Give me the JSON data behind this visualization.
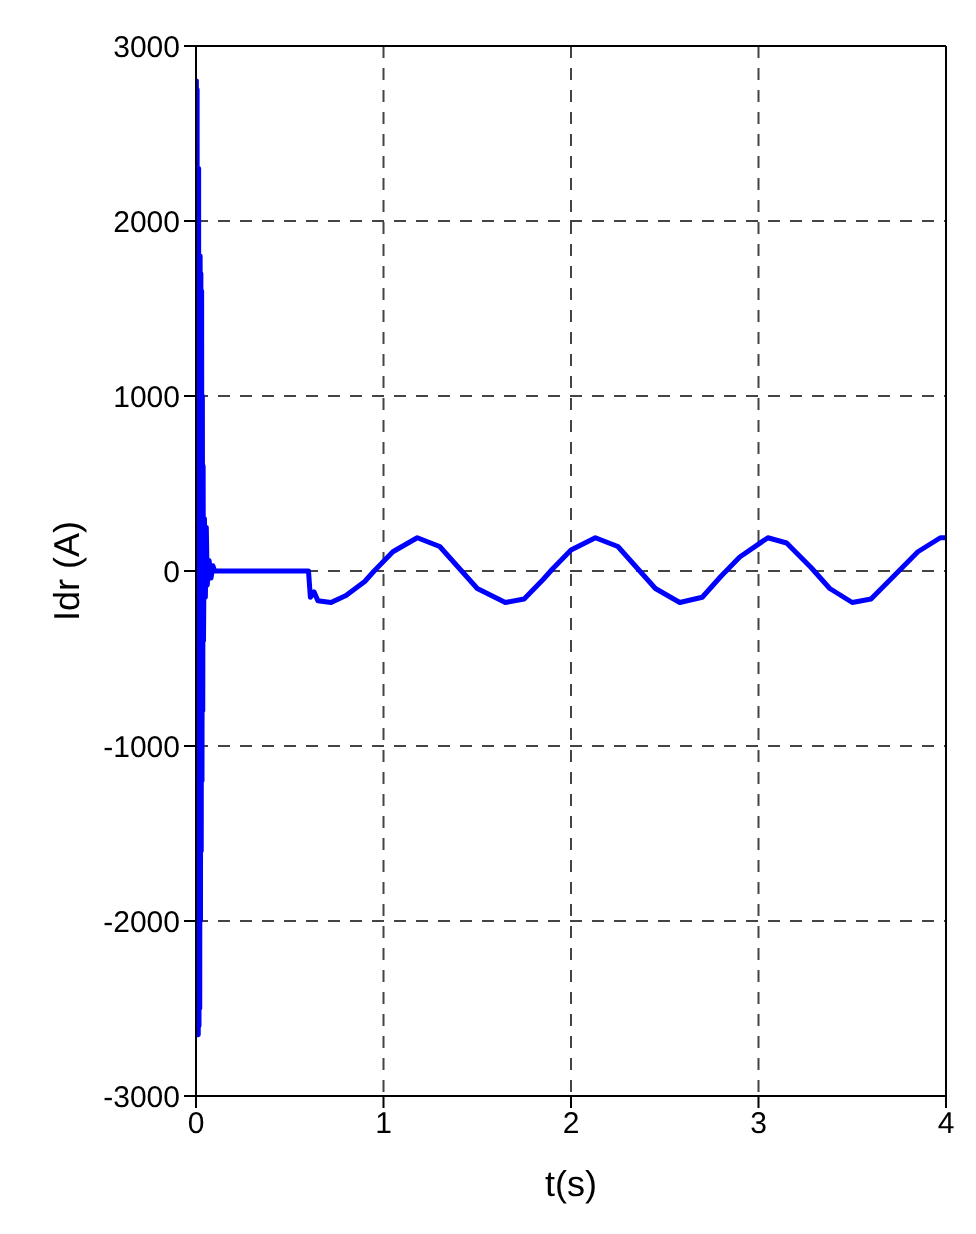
{
  "chart_data": {
    "type": "line",
    "xlabel": "t(s)",
    "ylabel": "Idr (A)",
    "xlim": [
      0,
      4
    ],
    "ylim": [
      -3000,
      3000
    ],
    "xticks": [
      0,
      1,
      2,
      3,
      4
    ],
    "yticks": [
      -3000,
      -2000,
      -1000,
      0,
      1000,
      2000,
      3000
    ],
    "grid": true,
    "marker": "none",
    "line_style": "solid",
    "series": [
      {
        "color": "#0000ff",
        "x": [
          0,
          0.002,
          0.004,
          0.006,
          0.008,
          0.01,
          0.012,
          0.014,
          0.016,
          0.018,
          0.02,
          0.022,
          0.024,
          0.026,
          0.028,
          0.03,
          0.032,
          0.034,
          0.036,
          0.038,
          0.04,
          0.045,
          0.05,
          0.055,
          0.06,
          0.07,
          0.08,
          0.09,
          0.1,
          0.6,
          0.61,
          0.63,
          0.65,
          0.72,
          0.8,
          0.9,
          0.95,
          1.05,
          1.18,
          1.3,
          1.4,
          1.5,
          1.65,
          1.75,
          1.85,
          1.9,
          2.0,
          2.13,
          2.25,
          2.35,
          2.45,
          2.58,
          2.7,
          2.8,
          2.9,
          3.05,
          3.15,
          3.28,
          3.38,
          3.5,
          3.6,
          3.73,
          3.85,
          3.97,
          4.0
        ],
        "values": [
          0,
          2800,
          -2600,
          2750,
          -2650,
          2300,
          -2650,
          2300,
          -2600,
          1800,
          -2500,
          1800,
          -2000,
          1700,
          -1600,
          1600,
          -1200,
          1000,
          -800,
          600,
          -400,
          300,
          -150,
          250,
          -80,
          60,
          -40,
          30,
          0,
          0,
          -150,
          -120,
          -170,
          -180,
          -140,
          -60,
          0,
          110,
          190,
          140,
          20,
          -100,
          -180,
          -160,
          -50,
          10,
          120,
          190,
          140,
          20,
          -100,
          -180,
          -150,
          -30,
          80,
          190,
          160,
          20,
          -100,
          -180,
          -160,
          -20,
          110,
          190,
          190
        ]
      }
    ]
  }
}
